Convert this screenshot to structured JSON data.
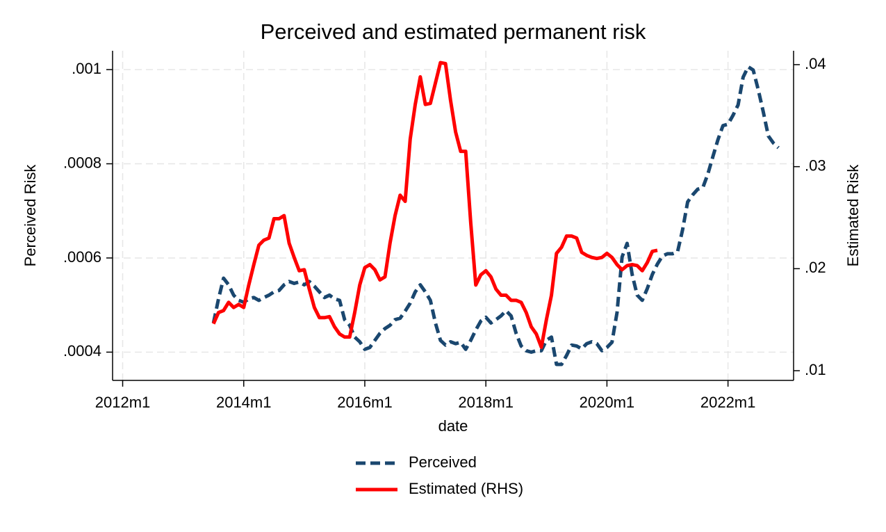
{
  "chart_data": {
    "type": "line",
    "title": "Perceived and estimated permanent risk",
    "x_label": "date",
    "y_label": "Perceived Risk",
    "y2_label": "Estimated Risk",
    "x": [
      "2013m7",
      "2013m8",
      "2013m9",
      "2013m10",
      "2013m11",
      "2013m12",
      "2014m1",
      "2014m2",
      "2014m3",
      "2014m4",
      "2014m5",
      "2014m6",
      "2014m7",
      "2014m8",
      "2014m9",
      "2014m10",
      "2014m11",
      "2014m12",
      "2015m1",
      "2015m2",
      "2015m3",
      "2015m4",
      "2015m5",
      "2015m6",
      "2015m7",
      "2015m8",
      "2015m9",
      "2015m10",
      "2015m11",
      "2015m12",
      "2016m1",
      "2016m2",
      "2016m3",
      "2016m4",
      "2016m5",
      "2016m6",
      "2016m7",
      "2016m8",
      "2016m9",
      "2016m10",
      "2016m11",
      "2016m12",
      "2017m1",
      "2017m2",
      "2017m3",
      "2017m4",
      "2017m5",
      "2017m6",
      "2017m7",
      "2017m8",
      "2017m9",
      "2017m10",
      "2017m11",
      "2017m12",
      "2018m1",
      "2018m2",
      "2018m3",
      "2018m4",
      "2018m5",
      "2018m6",
      "2018m7",
      "2018m8",
      "2018m9",
      "2018m10",
      "2018m11",
      "2018m12",
      "2019m1",
      "2019m2",
      "2019m3",
      "2019m4",
      "2019m5",
      "2019m6",
      "2019m7",
      "2019m8",
      "2019m9",
      "2019m10",
      "2019m11",
      "2019m12",
      "2020m1",
      "2020m2",
      "2020m3",
      "2020m4",
      "2020m5",
      "2020m6",
      "2020m7",
      "2020m8",
      "2020m9",
      "2020m10",
      "2020m11",
      "2020m12",
      "2021m1",
      "2021m2",
      "2021m3",
      "2021m4",
      "2021m5",
      "2021m6",
      "2021m7",
      "2021m8",
      "2021m9",
      "2021m10",
      "2021m11",
      "2021m12",
      "2022m1",
      "2022m2",
      "2022m3",
      "2022m4",
      "2022m5",
      "2022m6",
      "2022m7",
      "2022m8",
      "2022m9",
      "2022m10",
      "2022m11"
    ],
    "series": [
      {
        "name": "Perceived",
        "color": "#1a476f",
        "dash": true,
        "values": [
          0.000462,
          0.000513,
          0.000557,
          0.000543,
          0.000521,
          0.00051,
          0.000506,
          0.000513,
          0.000516,
          0.00051,
          0.000516,
          0.000521,
          0.000528,
          0.000531,
          0.000543,
          0.00055,
          0.000546,
          0.000549,
          0.000543,
          0.00055,
          0.00054,
          0.000528,
          0.000516,
          0.000521,
          0.000513,
          0.00051,
          0.000469,
          0.000457,
          0.000432,
          0.000422,
          0.000406,
          0.00041,
          0.000425,
          0.00044,
          0.00045,
          0.000457,
          0.000469,
          0.000472,
          0.000487,
          0.000504,
          0.000528,
          0.000543,
          0.000528,
          0.00051,
          0.000462,
          0.000425,
          0.000415,
          0.000422,
          0.000418,
          0.000421,
          0.000406,
          0.000425,
          0.000447,
          0.000466,
          0.000474,
          0.000462,
          0.000469,
          0.000477,
          0.000488,
          0.000477,
          0.00044,
          0.000413,
          0.000403,
          0.0004,
          0.000403,
          0.000403,
          0.000425,
          0.000432,
          0.000374,
          0.000374,
          0.000393,
          0.000415,
          0.000413,
          0.000407,
          0.000418,
          0.000422,
          0.000418,
          0.000403,
          0.00041,
          0.000421,
          0.000484,
          0.000602,
          0.000631,
          0.000565,
          0.000521,
          0.00051,
          0.000535,
          0.000565,
          0.000587,
          0.000604,
          0.000609,
          0.000609,
          0.000613,
          0.00066,
          0.000719,
          0.000734,
          0.000746,
          0.000749,
          0.000778,
          0.000815,
          0.000851,
          0.000881,
          0.000884,
          0.000903,
          0.000925,
          0.000984,
          0.001006,
          0.000999,
          0.000957,
          0.00091,
          0.000859,
          0.000844,
          0.000834
        ]
      },
      {
        "name": "Estimated (RHS)",
        "color": "#ff0000",
        "dash": false,
        "axis": "y2",
        "values": [
          0.0146,
          0.0157,
          0.0159,
          0.0167,
          0.0162,
          0.0165,
          0.0162,
          0.0184,
          0.0204,
          0.0223,
          0.0228,
          0.023,
          0.0249,
          0.0249,
          0.0252,
          0.0225,
          0.0211,
          0.0198,
          0.0199,
          0.018,
          0.0162,
          0.0152,
          0.0152,
          0.0153,
          0.0143,
          0.0136,
          0.0133,
          0.0133,
          0.0157,
          0.0184,
          0.0201,
          0.0204,
          0.0199,
          0.0189,
          0.0192,
          0.0225,
          0.0252,
          0.0272,
          0.0266,
          0.0327,
          0.0361,
          0.0388,
          0.0361,
          0.0362,
          0.0382,
          0.0402,
          0.0401,
          0.0365,
          0.0334,
          0.0315,
          0.0315,
          0.0245,
          0.0184,
          0.0194,
          0.0198,
          0.0192,
          0.018,
          0.0174,
          0.0174,
          0.0169,
          0.0169,
          0.0167,
          0.0157,
          0.0143,
          0.0136,
          0.0123,
          0.015,
          0.0174,
          0.0215,
          0.0221,
          0.0232,
          0.0232,
          0.023,
          0.0216,
          0.0213,
          0.0211,
          0.021,
          0.0211,
          0.0215,
          0.0211,
          0.0204,
          0.0199,
          0.0203,
          0.0204,
          0.0203,
          0.0198,
          0.0206,
          0.0217,
          0.0218,
          null,
          null,
          null,
          null,
          null,
          null,
          null,
          null,
          null,
          null,
          null,
          null,
          null,
          null,
          null,
          null,
          null,
          null,
          null,
          null,
          null,
          null,
          null,
          null
        ]
      }
    ],
    "xlim": [
      "2011m11",
      "2023m2"
    ],
    "xticks": [
      "2012m1",
      "2014m1",
      "2016m1",
      "2018m1",
      "2020m1",
      "2022m1"
    ],
    "ylim": [
      0.00034,
      0.00104
    ],
    "yticks": [
      {
        "value": 0.0004,
        "label": ".0004"
      },
      {
        "value": 0.0006,
        "label": ".0006"
      },
      {
        "value": 0.0008,
        "label": ".0008"
      },
      {
        "value": 0.001,
        "label": ".001"
      }
    ],
    "y2lim": [
      0.00905,
      0.04136
    ],
    "y2ticks": [
      {
        "value": 0.01,
        "label": ".01"
      },
      {
        "value": 0.02,
        "label": ".02"
      },
      {
        "value": 0.03,
        "label": ".03"
      },
      {
        "value": 0.04,
        "label": ".04"
      }
    ],
    "grid": true,
    "legend": "bottom"
  }
}
